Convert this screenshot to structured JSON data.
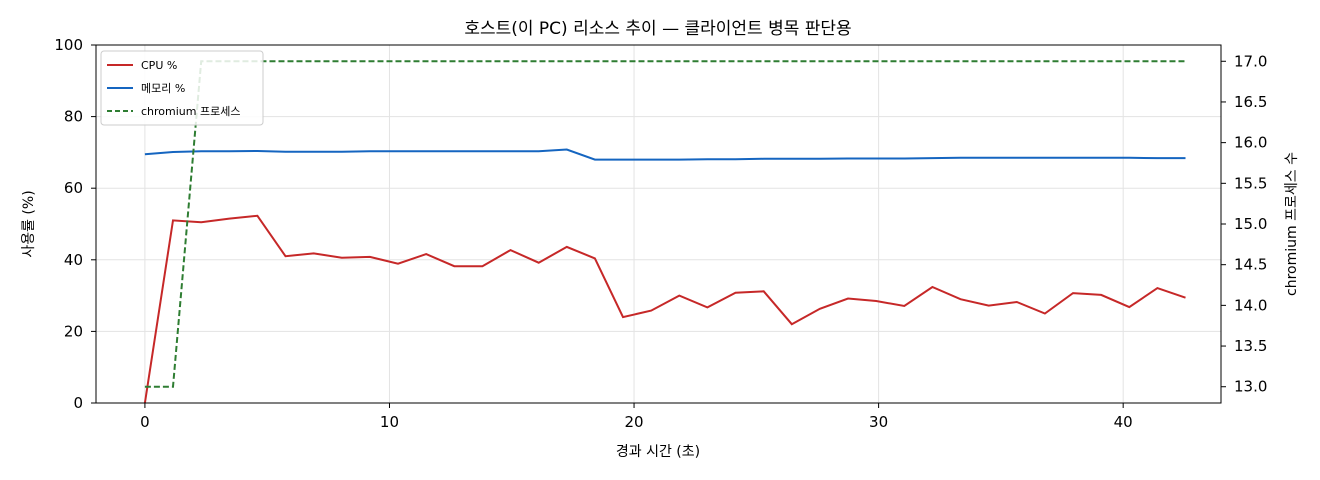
{
  "chart_data": {
    "type": "line",
    "title": "호스트(이 PC) 리소스 추이 — 클라이언트 병목 판단용",
    "xlabel": "경과 시간 (초)",
    "ylabel": "사용률 (%)",
    "y2label": "chromium 프로세스 수",
    "xlim": [
      -2,
      44
    ],
    "ylim": [
      0,
      100
    ],
    "y2lim": [
      12.8,
      17.2
    ],
    "x_ticks": [
      "0",
      "10",
      "20",
      "30",
      "40"
    ],
    "y_ticks": [
      "0",
      "20",
      "40",
      "60",
      "80",
      "100"
    ],
    "y2_ticks": [
      "13.0",
      "13.5",
      "14.0",
      "14.5",
      "15.0",
      "15.5",
      "16.0",
      "16.5",
      "17.0"
    ],
    "grid": true,
    "legend_position": "top-left",
    "series": [
      {
        "name": "CPU %",
        "axis": "left",
        "color": "#c62828",
        "style": "solid",
        "x": [
          0,
          1.15,
          2.3,
          3.45,
          4.6,
          5.75,
          6.9,
          8.05,
          9.2,
          10.35,
          11.5,
          12.65,
          13.8,
          14.95,
          16.1,
          17.25,
          18.4,
          19.55,
          20.7,
          21.85,
          23.0,
          24.15,
          25.3,
          26.45,
          27.6,
          28.75,
          29.9,
          31.05,
          32.2,
          33.35,
          34.5,
          35.65,
          36.8,
          37.95,
          39.1,
          40.25,
          41.4,
          42.55
        ],
        "y": [
          0,
          51,
          50.5,
          51.5,
          52.3,
          41,
          41.8,
          40.6,
          40.8,
          38.9,
          41.6,
          38.2,
          38.2,
          42.7,
          39.2,
          43.6,
          40.4,
          24,
          25.8,
          30,
          26.7,
          30.8,
          31.2,
          22,
          26.3,
          29.2,
          28.5,
          27.1,
          32.4,
          29,
          27.2,
          28.2,
          25,
          30.7,
          30.2,
          26.8,
          32.1,
          29.4
        ]
      },
      {
        "name": "메모리 %",
        "axis": "left",
        "color": "#1565c0",
        "style": "solid",
        "x": [
          0,
          1.15,
          2.3,
          3.45,
          4.6,
          5.75,
          6.9,
          8.05,
          9.2,
          10.35,
          11.5,
          12.65,
          13.8,
          14.95,
          16.1,
          17.25,
          18.4,
          19.55,
          20.7,
          21.85,
          23.0,
          24.15,
          25.3,
          26.45,
          27.6,
          28.75,
          29.9,
          31.05,
          32.2,
          33.35,
          34.5,
          35.65,
          36.8,
          37.95,
          39.1,
          40.25,
          41.4,
          42.55
        ],
        "y": [
          69.5,
          70.1,
          70.3,
          70.3,
          70.4,
          70.2,
          70.2,
          70.2,
          70.3,
          70.3,
          70.3,
          70.3,
          70.3,
          70.3,
          70.3,
          70.8,
          68,
          68,
          68,
          68,
          68.1,
          68.1,
          68.2,
          68.2,
          68.2,
          68.3,
          68.3,
          68.3,
          68.4,
          68.5,
          68.5,
          68.5,
          68.5,
          68.5,
          68.5,
          68.5,
          68.4,
          68.4
        ]
      },
      {
        "name": "chromium 프로세스",
        "axis": "right",
        "color": "#2e7d32",
        "style": "dashed",
        "x": [
          0,
          1.15,
          2.3,
          3.45,
          42.55
        ],
        "y": [
          13,
          13,
          17,
          17,
          17
        ]
      }
    ]
  }
}
